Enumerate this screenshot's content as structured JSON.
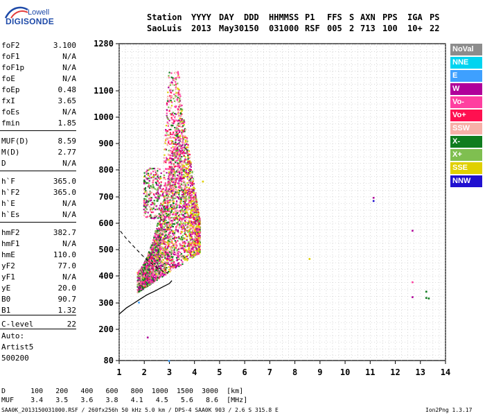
{
  "logo": {
    "top_text": "Lowell",
    "bottom_text": "DIGISONDE"
  },
  "header": {
    "line1": [
      "Station",
      "YYYY",
      "DAY",
      "DDD",
      "HHMMSS",
      "P1",
      "FFS",
      "S",
      "AXN",
      "PPS",
      "IGA",
      "PS"
    ],
    "line2": [
      "SaoLuis",
      "2013",
      "May30",
      "150",
      "031000",
      "RSF",
      "005",
      "2",
      "713",
      "100",
      "10+",
      "22"
    ]
  },
  "params": [
    {
      "name": "foF2",
      "value": "3.100"
    },
    {
      "name": "foF1",
      "value": "N/A"
    },
    {
      "name": "foF1p",
      "value": "N/A"
    },
    {
      "name": "foE",
      "value": "N/A"
    },
    {
      "name": "foEp",
      "value": "0.48"
    },
    {
      "name": "fxI",
      "value": "3.65"
    },
    {
      "name": "foEs",
      "value": "N/A"
    },
    {
      "name": "fmin",
      "value": "1.85"
    },
    {
      "name": "MUF(D)",
      "value": "8.59"
    },
    {
      "name": "M(D)",
      "value": "2.77"
    },
    {
      "name": "D",
      "value": "N/A"
    },
    {
      "name": "h`F",
      "value": "365.0"
    },
    {
      "name": "h`F2",
      "value": "365.0"
    },
    {
      "name": "h`E",
      "value": "N/A"
    },
    {
      "name": "h`Es",
      "value": "N/A"
    },
    {
      "name": "hmF2",
      "value": "382.7"
    },
    {
      "name": "hmF1",
      "value": "N/A"
    },
    {
      "name": "hmE",
      "value": "110.0"
    },
    {
      "name": "yF2",
      "value": "77.0"
    },
    {
      "name": "yF1",
      "value": "N/A"
    },
    {
      "name": "yE",
      "value": "20.0"
    },
    {
      "name": "B0",
      "value": "90.7"
    },
    {
      "name": "B1",
      "value": "1.32"
    },
    {
      "name": "C-level",
      "value": "22"
    }
  ],
  "auto": [
    "Auto:",
    "Artist5",
    "500200"
  ],
  "legend": [
    {
      "label": "NoVal",
      "color": "#8c8c8c"
    },
    {
      "label": "NNE",
      "color": "#00d4f0"
    },
    {
      "label": "E",
      "color": "#3ea0ff"
    },
    {
      "label": "W",
      "color": "#b0009a"
    },
    {
      "label": "Vo-",
      "color": "#ff3fa0"
    },
    {
      "label": "Vo+",
      "color": "#ff1050"
    },
    {
      "label": "SSW",
      "color": "#f7b0a8"
    },
    {
      "label": "X-",
      "color": "#0f7c1e"
    },
    {
      "label": "X+",
      "color": "#7fbf50"
    },
    {
      "label": "SSE",
      "color": "#e0d000"
    },
    {
      "label": "NNW",
      "color": "#2010d0"
    }
  ],
  "chart_data": {
    "type": "scatter",
    "xlim": [
      1,
      14
    ],
    "y_ticks": [
      80,
      200,
      300,
      400,
      500,
      600,
      700,
      800,
      900,
      1000,
      1100,
      1280
    ],
    "x_ticks": [
      1,
      2,
      3,
      4,
      5,
      6,
      7,
      8,
      9,
      10,
      11,
      12,
      13,
      14
    ],
    "grid": true,
    "profile_curve": {
      "x": [
        1.0,
        1.3,
        1.6,
        1.85,
        2.1,
        2.4,
        2.7,
        3.0,
        3.1
      ],
      "y": [
        258,
        282,
        300,
        315,
        330,
        343,
        358,
        372,
        382.7
      ]
    },
    "dashed_curve": {
      "x": [
        1.05,
        1.3,
        1.6,
        1.9,
        2.2,
        2.5,
        2.75,
        2.95
      ],
      "y": [
        570,
        540,
        510,
        480,
        452,
        432,
        418,
        410
      ]
    },
    "isolated_points": [
      {
        "x": 8.55,
        "y": 468,
        "color": "#e0d000"
      },
      {
        "x": 11.1,
        "y": 700,
        "color": "#b0009a"
      },
      {
        "x": 11.1,
        "y": 688,
        "color": "#2010d0"
      },
      {
        "x": 12.65,
        "y": 575,
        "color": "#b0009a"
      },
      {
        "x": 12.65,
        "y": 380,
        "color": "#ff3fa0"
      },
      {
        "x": 12.65,
        "y": 325,
        "color": "#b0009a"
      },
      {
        "x": 13.2,
        "y": 345,
        "color": "#0f7c1e"
      },
      {
        "x": 13.2,
        "y": 322,
        "color": "#0f7c1e"
      },
      {
        "x": 13.3,
        "y": 320,
        "color": "#0f7c1e"
      },
      {
        "x": 2.1,
        "y": 172,
        "color": "#b0009a"
      },
      {
        "x": 2.95,
        "y": 82,
        "color": "#3ea0ff"
      },
      {
        "x": 4.3,
        "y": 760,
        "color": "#e0d000"
      },
      {
        "x": 1.75,
        "y": 305,
        "color": "#3ea0ff"
      }
    ]
  },
  "footer": {
    "d_row": "D      100   200   400   600   800  1000  1500  3000  [km]",
    "muf_row": "MUF    3.4   3.5   3.6   3.8   4.1   4.5   5.6   8.6  [MHz]",
    "info": "SAA0K_2013150031000.RSF / 260fx256h 50 kHz 5.0 km / DPS-4 SAA0K 903 / 2.6 S 315.8 E",
    "version": "Ion2Png 1.3.17"
  }
}
